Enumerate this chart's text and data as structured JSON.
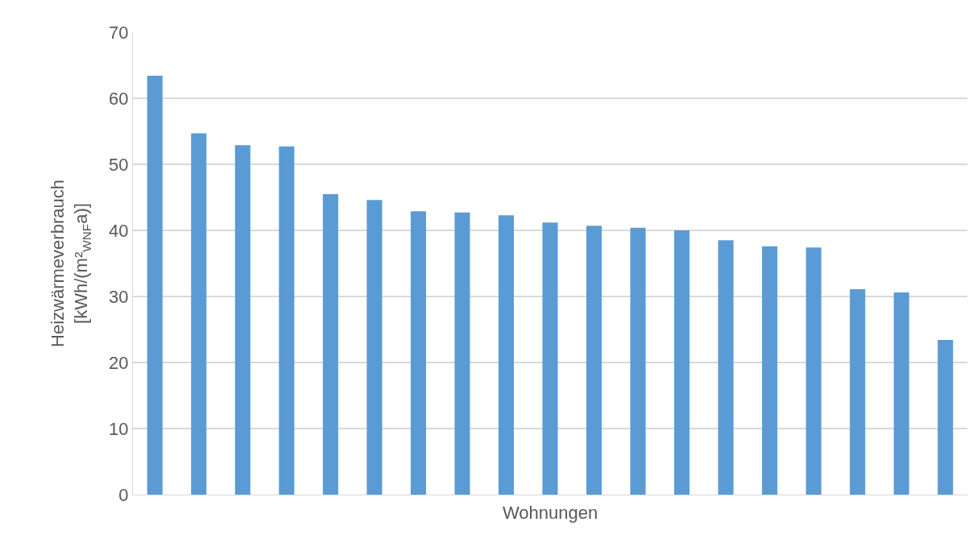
{
  "chart_data": {
    "type": "bar",
    "xlabel": "Wohnungen",
    "ylabel": "Heizwärmeverbrauch\n[kWh/(m²$_{WNF}$a)]",
    "categories": [
      null,
      null,
      null,
      null,
      null,
      null,
      null,
      null,
      null,
      null,
      null,
      null,
      null,
      null,
      null,
      null,
      null,
      null,
      null
    ],
    "values": [
      63.4,
      54.7,
      52.9,
      52.7,
      45.5,
      44.6,
      42.9,
      42.7,
      42.3,
      41.2,
      40.7,
      40.4,
      40.0,
      38.5,
      37.6,
      37.4,
      31.1,
      30.6,
      23.4
    ],
    "color": "#5b9bd5",
    "ylim": [
      0,
      70
    ],
    "yticks": [
      0,
      10,
      20,
      30,
      40,
      50,
      60,
      70
    ],
    "grid": "y"
  }
}
